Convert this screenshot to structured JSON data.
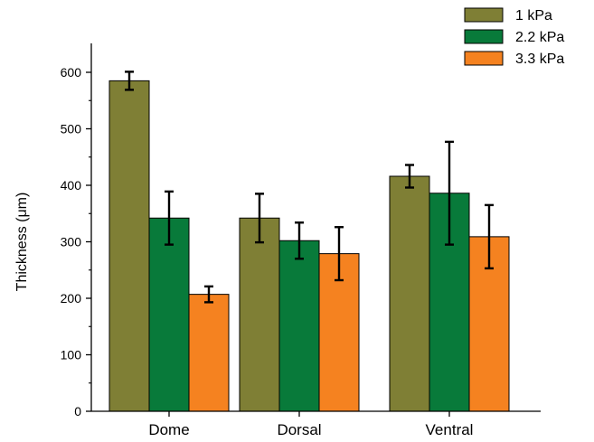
{
  "chart_data": {
    "type": "bar",
    "categories": [
      "Dome",
      "Dorsal",
      "Ventral"
    ],
    "series": [
      {
        "name": "1 kPa",
        "color": "#7f7f35",
        "values": [
          585,
          342,
          416
        ],
        "errors": [
          16,
          43,
          20
        ]
      },
      {
        "name": "2.2 kPa",
        "color": "#087a3a",
        "values": [
          342,
          302,
          386
        ],
        "errors": [
          47,
          32,
          91
        ]
      },
      {
        "name": "3.3 kPa",
        "color": "#f58220",
        "values": [
          207,
          279,
          309
        ],
        "errors": [
          14,
          47,
          56
        ]
      }
    ],
    "title": "",
    "xlabel": "",
    "ylabel": "Thickness (μm)",
    "ylim": [
      0,
      600
    ],
    "yticks": [
      "0",
      "100",
      "200",
      "300",
      "400",
      "500",
      "600"
    ],
    "grid": false,
    "legend_position": "top-right"
  }
}
